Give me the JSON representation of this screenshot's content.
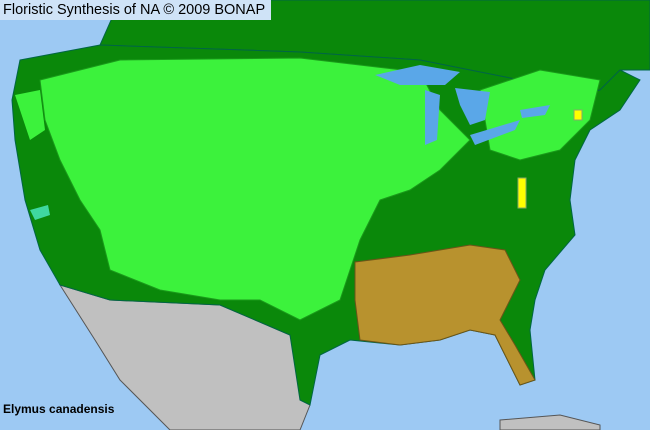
{
  "header": {
    "title": "Floristic Synthesis of NA © 2009 BONAP"
  },
  "species": {
    "name": "Elymus canadensis"
  },
  "colors": {
    "ocean": "#9dc9f3",
    "native_present": "#3cf23c",
    "state_present": "#0a880a",
    "absent_state_brown": "#b8922e",
    "rare": "#ffff00",
    "other_country": "#c0c0c0",
    "lake": "#5aa7e8"
  }
}
